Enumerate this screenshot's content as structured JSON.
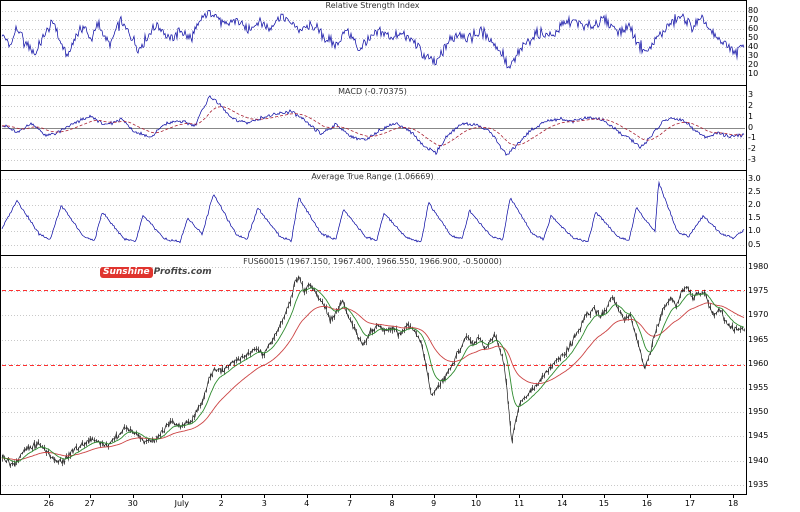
{
  "logo": {
    "part1": "Sunshine",
    "part2": "Profits.com"
  },
  "x_axis": {
    "labels": [
      "26",
      "27",
      "30",
      "July",
      "2",
      "3",
      "4",
      "7",
      "8",
      "9",
      "10",
      "11",
      "14",
      "15",
      "16",
      "17",
      "18"
    ],
    "positions": [
      0.063,
      0.118,
      0.176,
      0.242,
      0.295,
      0.353,
      0.41,
      0.468,
      0.525,
      0.581,
      0.638,
      0.696,
      0.754,
      0.81,
      0.868,
      0.926,
      0.984
    ]
  },
  "chart_data": [
    {
      "type": "line",
      "title": "Relative Strength Index",
      "ylim": [
        0,
        90
      ],
      "y_ticks": [
        "80",
        "70",
        "60",
        "50",
        "40",
        "30",
        "20",
        "10"
      ],
      "line_color": "#0000a0",
      "points": [
        [
          0,
          55
        ],
        [
          0.01,
          40
        ],
        [
          0.02,
          62
        ],
        [
          0.03,
          45
        ],
        [
          0.045,
          33
        ],
        [
          0.06,
          58
        ],
        [
          0.07,
          68
        ],
        [
          0.08,
          42
        ],
        [
          0.09,
          30
        ],
        [
          0.1,
          55
        ],
        [
          0.11,
          62
        ],
        [
          0.12,
          48
        ],
        [
          0.13,
          65
        ],
        [
          0.145,
          42
        ],
        [
          0.16,
          68
        ],
        [
          0.17,
          55
        ],
        [
          0.185,
          38
        ],
        [
          0.2,
          56
        ],
        [
          0.21,
          66
        ],
        [
          0.225,
          48
        ],
        [
          0.24,
          58
        ],
        [
          0.255,
          50
        ],
        [
          0.27,
          72
        ],
        [
          0.285,
          80
        ],
        [
          0.3,
          62
        ],
        [
          0.315,
          70
        ],
        [
          0.33,
          58
        ],
        [
          0.345,
          68
        ],
        [
          0.36,
          60
        ],
        [
          0.375,
          74
        ],
        [
          0.39,
          66
        ],
        [
          0.405,
          58
        ],
        [
          0.42,
          64
        ],
        [
          0.435,
          50
        ],
        [
          0.45,
          42
        ],
        [
          0.465,
          60
        ],
        [
          0.48,
          38
        ],
        [
          0.495,
          48
        ],
        [
          0.51,
          58
        ],
        [
          0.525,
          50
        ],
        [
          0.54,
          56
        ],
        [
          0.555,
          46
        ],
        [
          0.57,
          28
        ],
        [
          0.585,
          22
        ],
        [
          0.6,
          44
        ],
        [
          0.615,
          56
        ],
        [
          0.63,
          50
        ],
        [
          0.645,
          58
        ],
        [
          0.66,
          48
        ],
        [
          0.675,
          32
        ],
        [
          0.683,
          15
        ],
        [
          0.695,
          32
        ],
        [
          0.71,
          48
        ],
        [
          0.725,
          56
        ],
        [
          0.74,
          52
        ],
        [
          0.755,
          64
        ],
        [
          0.77,
          70
        ],
        [
          0.785,
          62
        ],
        [
          0.8,
          66
        ],
        [
          0.815,
          70
        ],
        [
          0.83,
          58
        ],
        [
          0.845,
          62
        ],
        [
          0.86,
          42
        ],
        [
          0.87,
          34
        ],
        [
          0.885,
          52
        ],
        [
          0.9,
          66
        ],
        [
          0.915,
          74
        ],
        [
          0.93,
          62
        ],
        [
          0.945,
          70
        ],
        [
          0.96,
          52
        ],
        [
          0.975,
          44
        ],
        [
          0.99,
          34
        ],
        [
          1,
          42
        ]
      ]
    },
    {
      "type": "line",
      "title": "MACD (-0.70375)",
      "ylim": [
        -3.5,
        3.5
      ],
      "y_ticks": [
        "3",
        "2",
        "1",
        "0",
        "-1",
        "-2",
        "-3"
      ],
      "line_color": "#0000a0",
      "signal_color": "#aa2233",
      "last_value": -0.70375,
      "points": [
        [
          0,
          0.3
        ],
        [
          0.02,
          -0.5
        ],
        [
          0.04,
          0.4
        ],
        [
          0.06,
          -0.8
        ],
        [
          0.08,
          -0.3
        ],
        [
          0.1,
          0.5
        ],
        [
          0.12,
          1.0
        ],
        [
          0.14,
          0.2
        ],
        [
          0.16,
          0.8
        ],
        [
          0.18,
          -0.4
        ],
        [
          0.2,
          -0.9
        ],
        [
          0.22,
          0.3
        ],
        [
          0.24,
          0.6
        ],
        [
          0.26,
          0.2
        ],
        [
          0.28,
          2.9
        ],
        [
          0.295,
          2.0
        ],
        [
          0.31,
          0.8
        ],
        [
          0.33,
          0.4
        ],
        [
          0.35,
          0.9
        ],
        [
          0.37,
          1.2
        ],
        [
          0.39,
          1.5
        ],
        [
          0.41,
          0.5
        ],
        [
          0.43,
          -0.6
        ],
        [
          0.45,
          0.3
        ],
        [
          0.47,
          -0.8
        ],
        [
          0.49,
          -1.2
        ],
        [
          0.51,
          -0.2
        ],
        [
          0.53,
          0.4
        ],
        [
          0.55,
          -0.3
        ],
        [
          0.57,
          -1.8
        ],
        [
          0.585,
          -2.3
        ],
        [
          0.6,
          -0.8
        ],
        [
          0.62,
          0.4
        ],
        [
          0.64,
          0.2
        ],
        [
          0.66,
          -0.5
        ],
        [
          0.68,
          -2.6
        ],
        [
          0.695,
          -1.5
        ],
        [
          0.71,
          -0.4
        ],
        [
          0.73,
          0.5
        ],
        [
          0.75,
          0.8
        ],
        [
          0.77,
          0.6
        ],
        [
          0.79,
          0.9
        ],
        [
          0.81,
          0.7
        ],
        [
          0.83,
          -0.4
        ],
        [
          0.85,
          -1.2
        ],
        [
          0.86,
          -1.9
        ],
        [
          0.875,
          -0.8
        ],
        [
          0.89,
          0.5
        ],
        [
          0.905,
          0.9
        ],
        [
          0.92,
          0.6
        ],
        [
          0.935,
          -0.3
        ],
        [
          0.95,
          -0.9
        ],
        [
          0.965,
          -0.5
        ],
        [
          0.98,
          -0.8
        ],
        [
          1,
          -0.70375
        ]
      ]
    },
    {
      "type": "line",
      "title": "Average True Range (1.06669)",
      "ylim": [
        0.2,
        3.2
      ],
      "y_ticks": [
        "3.0",
        "2.5",
        "2.0",
        "1.5",
        "1.0",
        "0.5"
      ],
      "line_color": "#0000a0",
      "last_value": 1.06669,
      "points": [
        [
          0,
          1.1
        ],
        [
          0.02,
          2.2
        ],
        [
          0.05,
          0.9
        ],
        [
          0.065,
          0.7
        ],
        [
          0.08,
          2.0
        ],
        [
          0.11,
          0.8
        ],
        [
          0.125,
          0.65
        ],
        [
          0.135,
          1.75
        ],
        [
          0.165,
          0.7
        ],
        [
          0.18,
          0.6
        ],
        [
          0.19,
          1.6
        ],
        [
          0.22,
          0.7
        ],
        [
          0.24,
          0.6
        ],
        [
          0.25,
          1.5
        ],
        [
          0.27,
          0.9
        ],
        [
          0.285,
          2.45
        ],
        [
          0.315,
          0.9
        ],
        [
          0.33,
          0.7
        ],
        [
          0.345,
          1.9
        ],
        [
          0.375,
          0.8
        ],
        [
          0.39,
          0.65
        ],
        [
          0.4,
          2.3
        ],
        [
          0.43,
          0.9
        ],
        [
          0.45,
          0.7
        ],
        [
          0.46,
          1.85
        ],
        [
          0.49,
          0.8
        ],
        [
          0.505,
          0.65
        ],
        [
          0.515,
          1.7
        ],
        [
          0.545,
          0.75
        ],
        [
          0.565,
          0.6
        ],
        [
          0.575,
          2.1
        ],
        [
          0.605,
          0.85
        ],
        [
          0.62,
          0.7
        ],
        [
          0.63,
          1.8
        ],
        [
          0.66,
          0.8
        ],
        [
          0.675,
          0.7
        ],
        [
          0.685,
          2.3
        ],
        [
          0.715,
          0.9
        ],
        [
          0.73,
          0.7
        ],
        [
          0.74,
          1.6
        ],
        [
          0.77,
          0.75
        ],
        [
          0.79,
          0.6
        ],
        [
          0.8,
          1.75
        ],
        [
          0.83,
          0.8
        ],
        [
          0.845,
          0.65
        ],
        [
          0.855,
          1.9
        ],
        [
          0.88,
          1.0
        ],
        [
          0.885,
          2.9
        ],
        [
          0.91,
          1.0
        ],
        [
          0.925,
          0.8
        ],
        [
          0.945,
          1.6
        ],
        [
          0.97,
          0.9
        ],
        [
          0.985,
          0.75
        ],
        [
          1,
          1.07
        ]
      ]
    },
    {
      "type": "line",
      "title": "FUS60015 (1967.150, 1967.400, 1966.550, 1966.900, -0.50000)",
      "ylim": [
        1933,
        1982
      ],
      "y_ticks": [
        "1980",
        "1975",
        "1970",
        "1965",
        "1960",
        "1955",
        "1950",
        "1945",
        "1940",
        "1935"
      ],
      "line_color": "#1a1a1a",
      "overlays": [
        {
          "name": "fast-moving-average",
          "color": "#2e8b2e"
        },
        {
          "name": "slow-moving-average",
          "color": "#cc4444"
        }
      ],
      "levels": [
        1975.2,
        1959.8
      ],
      "level_color": "#ff3030",
      "points": [
        [
          0,
          1941
        ],
        [
          0.015,
          1939
        ],
        [
          0.03,
          1942
        ],
        [
          0.05,
          1943.5
        ],
        [
          0.065,
          1941
        ],
        [
          0.08,
          1939.5
        ],
        [
          0.095,
          1942
        ],
        [
          0.11,
          1943.5
        ],
        [
          0.125,
          1944.5
        ],
        [
          0.14,
          1943
        ],
        [
          0.155,
          1945
        ],
        [
          0.168,
          1947
        ],
        [
          0.18,
          1945.5
        ],
        [
          0.192,
          1944
        ],
        [
          0.205,
          1944
        ],
        [
          0.218,
          1946.5
        ],
        [
          0.228,
          1948
        ],
        [
          0.24,
          1947
        ],
        [
          0.252,
          1948
        ],
        [
          0.263,
          1950
        ],
        [
          0.272,
          1953
        ],
        [
          0.279,
          1957
        ],
        [
          0.287,
          1959
        ],
        [
          0.297,
          1958.5
        ],
        [
          0.31,
          1960
        ],
        [
          0.325,
          1961.5
        ],
        [
          0.34,
          1963
        ],
        [
          0.352,
          1962
        ],
        [
          0.363,
          1964.5
        ],
        [
          0.375,
          1968
        ],
        [
          0.386,
          1972
        ],
        [
          0.395,
          1977
        ],
        [
          0.401,
          1978
        ],
        [
          0.407,
          1975
        ],
        [
          0.415,
          1976.5
        ],
        [
          0.425,
          1974
        ],
        [
          0.435,
          1972
        ],
        [
          0.442,
          1969
        ],
        [
          0.452,
          1971
        ],
        [
          0.459,
          1973.5
        ],
        [
          0.467,
          1969.5
        ],
        [
          0.476,
          1967
        ],
        [
          0.486,
          1964
        ],
        [
          0.496,
          1966.5
        ],
        [
          0.506,
          1968
        ],
        [
          0.516,
          1967
        ],
        [
          0.526,
          1967.5
        ],
        [
          0.536,
          1966
        ],
        [
          0.546,
          1968
        ],
        [
          0.556,
          1966.5
        ],
        [
          0.566,
          1964
        ],
        [
          0.573,
          1958
        ],
        [
          0.579,
          1953
        ],
        [
          0.587,
          1955.5
        ],
        [
          0.597,
          1957
        ],
        [
          0.607,
          1960
        ],
        [
          0.617,
          1963
        ],
        [
          0.626,
          1966
        ],
        [
          0.634,
          1964
        ],
        [
          0.642,
          1965.5
        ],
        [
          0.65,
          1963.5
        ],
        [
          0.658,
          1964.5
        ],
        [
          0.664,
          1966
        ],
        [
          0.671,
          1963
        ],
        [
          0.677,
          1960
        ],
        [
          0.682,
          1952
        ],
        [
          0.687,
          1944
        ],
        [
          0.692,
          1948
        ],
        [
          0.698,
          1952
        ],
        [
          0.707,
          1953.5
        ],
        [
          0.717,
          1955
        ],
        [
          0.727,
          1957
        ],
        [
          0.737,
          1959
        ],
        [
          0.747,
          1960.5
        ],
        [
          0.757,
          1962
        ],
        [
          0.767,
          1964
        ],
        [
          0.777,
          1967
        ],
        [
          0.787,
          1970
        ],
        [
          0.797,
          1971.5
        ],
        [
          0.806,
          1969.5
        ],
        [
          0.816,
          1972
        ],
        [
          0.823,
          1974
        ],
        [
          0.831,
          1971
        ],
        [
          0.839,
          1969
        ],
        [
          0.846,
          1970.5
        ],
        [
          0.853,
          1966.5
        ],
        [
          0.859,
          1963
        ],
        [
          0.866,
          1958.5
        ],
        [
          0.873,
          1962
        ],
        [
          0.879,
          1966
        ],
        [
          0.886,
          1969
        ],
        [
          0.893,
          1972
        ],
        [
          0.901,
          1974
        ],
        [
          0.909,
          1972
        ],
        [
          0.916,
          1975
        ],
        [
          0.923,
          1976
        ],
        [
          0.931,
          1973.5
        ],
        [
          0.939,
          1974.5
        ],
        [
          0.946,
          1975
        ],
        [
          0.953,
          1972
        ],
        [
          0.959,
          1970
        ],
        [
          0.966,
          1971.5
        ],
        [
          0.973,
          1969.5
        ],
        [
          0.98,
          1968
        ],
        [
          0.987,
          1967.2
        ],
        [
          1,
          1966.9
        ]
      ]
    }
  ]
}
